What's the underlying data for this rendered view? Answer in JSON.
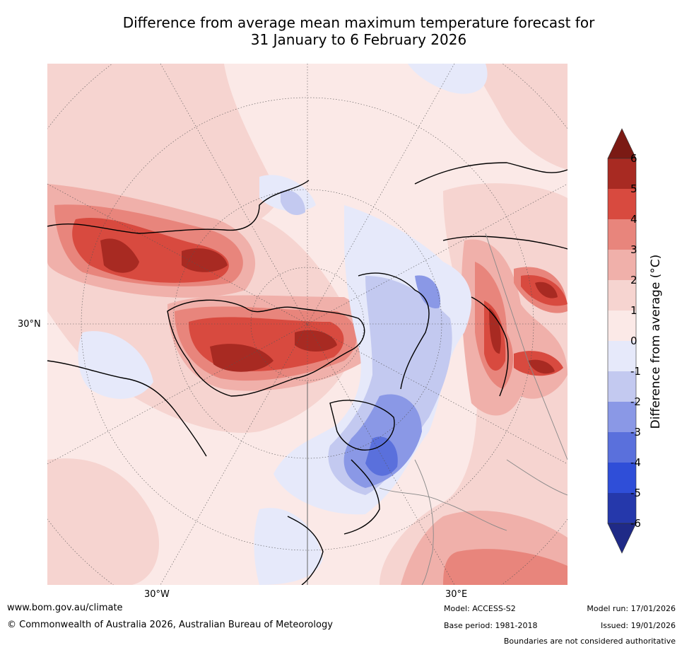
{
  "title_line1": "Difference from average mean maximum temperature forecast for",
  "title_line2": "31 January to 6 February 2026",
  "map": {
    "lat_label": "30°N",
    "lon_label_west": "30°W",
    "lon_label_east": "30°E"
  },
  "colorbar": {
    "label": "Difference from average (°C)",
    "ticks": [
      "6",
      "5",
      "4",
      "3",
      "2",
      "1",
      "0",
      "-1",
      "-2",
      "-3",
      "-4",
      "-5",
      "-6"
    ],
    "colors": {
      "above_6": "#7b1a14",
      "5_6": "#a82a22",
      "4_5": "#d84a3f",
      "3_4": "#e8857c",
      "2_3": "#f0b0aa",
      "1_2": "#f6d4d0",
      "0_1": "#fbe9e7",
      "m1_0": "#e6e9fa",
      "m2_m1": "#c3c9f0",
      "m3_m2": "#8a98e6",
      "m4_m3": "#5a70dc",
      "m5_m4": "#2f4ed8",
      "m6_m5": "#2538ab",
      "below_m6": "#1f2a87"
    }
  },
  "footer": {
    "website": "www.bom.gov.au/climate",
    "copyright": "© Commonwealth of Australia 2026, Australian Bureau of Meteorology",
    "model": "Model: ACCESS-S2",
    "base_period": "Base period: 1981-2018",
    "model_run": "Model run: 17/01/2026",
    "issued": "Issued: 19/01/2026",
    "disclaimer": "Boundaries are not considered authoritative"
  }
}
